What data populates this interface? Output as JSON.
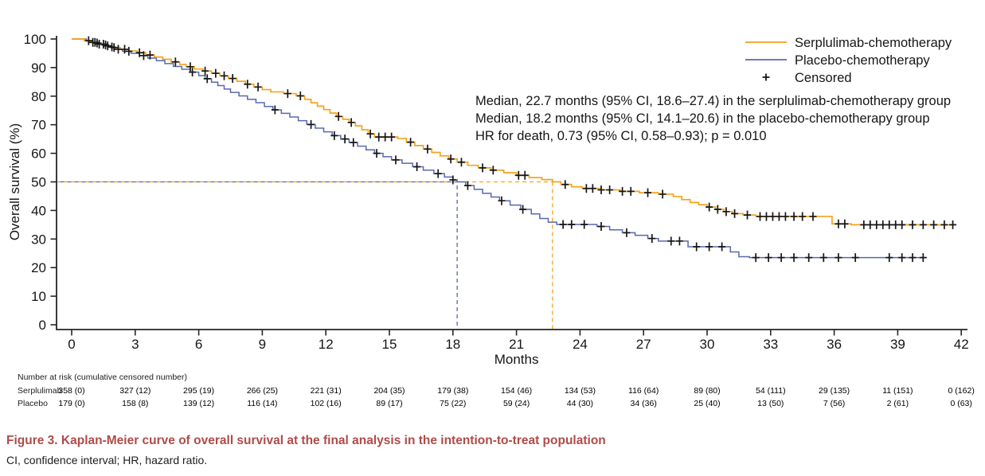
{
  "figure": {
    "caption_label": "Figure 3.",
    "caption_text": " Kaplan-Meier curve of overall survival at the final analysis in the intention-to-treat population",
    "footnote": "CI, confidence interval; HR, hazard ratio.",
    "caption_color": "#AE4C49"
  },
  "colors": {
    "serplulimab": "#F5A31E",
    "placebo": "#5A68AE",
    "censor": "#161616",
    "axis": "#262626"
  },
  "chart_data": {
    "type": "line",
    "subtype": "kaplan_meier_step",
    "title": "",
    "xlabel": "Months",
    "ylabel": "Overall survival (%)",
    "xlim": [
      0,
      42
    ],
    "ylim": [
      0,
      100
    ],
    "x_ticks": [
      0,
      3,
      6,
      9,
      12,
      15,
      18,
      21,
      24,
      27,
      30,
      33,
      36,
      39,
      42
    ],
    "y_ticks": [
      0,
      10,
      20,
      30,
      40,
      50,
      60,
      70,
      80,
      90,
      100
    ],
    "grid": false,
    "legend_position": "top-right",
    "legend": [
      {
        "label": "Serplulimab-chemotherapy",
        "type": "line",
        "color": "#F5A31E"
      },
      {
        "label": "Placebo-chemotherapy",
        "type": "line",
        "color": "#5A68AE"
      },
      {
        "label": "Censored",
        "type": "plus",
        "color": "#161616"
      }
    ],
    "annotation_lines": [
      "Median, 22.7 months (95% CI, 18.6–27.4) in the serplulimab-chemotherapy group",
      "Median, 18.2 months (95% CI, 14.1–20.6) in the placebo-chemotherapy group",
      "HR for death, 0.73 (95% CI, 0.58–0.93); p = 0.010"
    ],
    "median_reference": {
      "survival_pct": 50,
      "serplulimab_months": 22.7,
      "placebo_months": 18.2
    },
    "series": [
      {
        "name": "Serplulimab-chemotherapy",
        "color": "#F5A31E",
        "end_month": 41.6,
        "steps": [
          [
            0,
            100
          ],
          [
            0.6,
            99.4
          ],
          [
            0.9,
            98.8
          ],
          [
            1.2,
            98.2
          ],
          [
            1.6,
            97.6
          ],
          [
            1.9,
            97.0
          ],
          [
            2.3,
            96.4
          ],
          [
            2.7,
            95.8
          ],
          [
            3.1,
            95.2
          ],
          [
            3.5,
            94.4
          ],
          [
            3.9,
            93.7
          ],
          [
            4.3,
            92.9
          ],
          [
            4.7,
            92.0
          ],
          [
            5.1,
            91.1
          ],
          [
            5.4,
            90.3
          ],
          [
            5.8,
            89.5
          ],
          [
            6.2,
            88.8
          ],
          [
            6.6,
            88.0
          ],
          [
            7.0,
            87.1
          ],
          [
            7.4,
            86.2
          ],
          [
            7.8,
            85.2
          ],
          [
            8.2,
            84.2
          ],
          [
            8.6,
            83.2
          ],
          [
            9.0,
            82.3
          ],
          [
            9.4,
            81.5
          ],
          [
            10.0,
            80.9
          ],
          [
            10.6,
            80.1
          ],
          [
            11.0,
            78.9
          ],
          [
            11.3,
            77.7
          ],
          [
            11.6,
            76.5
          ],
          [
            11.9,
            75.3
          ],
          [
            12.2,
            74.1
          ],
          [
            12.5,
            72.9
          ],
          [
            12.8,
            71.9
          ],
          [
            13.1,
            70.8
          ],
          [
            13.4,
            69.6
          ],
          [
            13.7,
            68.2
          ],
          [
            14.0,
            66.8
          ],
          [
            14.3,
            65.7
          ],
          [
            15.4,
            65.2
          ],
          [
            15.8,
            63.9
          ],
          [
            16.2,
            62.7
          ],
          [
            16.6,
            61.5
          ],
          [
            17.0,
            60.3
          ],
          [
            17.4,
            59.1
          ],
          [
            17.8,
            58.0
          ],
          [
            18.2,
            56.9
          ],
          [
            18.7,
            55.8
          ],
          [
            19.2,
            54.9
          ],
          [
            19.8,
            54.1
          ],
          [
            20.4,
            53.2
          ],
          [
            21.0,
            52.3
          ],
          [
            21.6,
            51.5
          ],
          [
            22.2,
            50.8
          ],
          [
            22.7,
            50.0
          ],
          [
            23.1,
            49.1
          ],
          [
            23.6,
            48.3
          ],
          [
            24.1,
            47.7
          ],
          [
            25.0,
            47.2
          ],
          [
            25.9,
            46.7
          ],
          [
            26.8,
            46.2
          ],
          [
            27.7,
            45.7
          ],
          [
            28.4,
            44.9
          ],
          [
            28.8,
            43.8
          ],
          [
            29.2,
            42.8
          ],
          [
            29.6,
            42.0
          ],
          [
            30.0,
            41.2
          ],
          [
            30.4,
            40.4
          ],
          [
            30.8,
            39.6
          ],
          [
            31.2,
            38.9
          ],
          [
            31.7,
            38.4
          ],
          [
            32.3,
            37.9
          ],
          [
            35.9,
            35.3
          ],
          [
            36.8,
            35.0
          ]
        ],
        "censor_months": [
          0.8,
          1.0,
          1.1,
          1.3,
          1.5,
          1.7,
          2.0,
          2.5,
          3.2,
          3.7,
          4.9,
          5.6,
          6.3,
          6.8,
          7.2,
          7.6,
          8.3,
          8.8,
          10.2,
          10.8,
          12.6,
          13.2,
          14.1,
          14.5,
          14.8,
          15.1,
          16.0,
          16.8,
          17.9,
          18.4,
          19.4,
          19.9,
          21.1,
          21.4,
          23.3,
          24.3,
          24.6,
          25.0,
          25.4,
          26.0,
          26.4,
          27.2,
          27.9,
          30.1,
          30.5,
          30.9,
          31.3,
          31.9,
          32.5,
          32.8,
          33.1,
          33.4,
          33.7,
          34.1,
          34.5,
          35.0,
          36.2,
          36.5,
          37.4,
          37.7,
          38.0,
          38.3,
          38.6,
          38.9,
          39.2,
          39.7,
          40.2,
          40.7,
          41.2,
          41.6
        ]
      },
      {
        "name": "Placebo-chemotherapy",
        "color": "#5A68AE",
        "end_month": 40.2,
        "steps": [
          [
            0,
            100
          ],
          [
            0.7,
            99.3
          ],
          [
            1.0,
            98.6
          ],
          [
            1.4,
            97.9
          ],
          [
            1.7,
            97.2
          ],
          [
            2.0,
            96.4
          ],
          [
            2.4,
            95.7
          ],
          [
            2.8,
            95.0
          ],
          [
            3.2,
            94.2
          ],
          [
            3.6,
            93.3
          ],
          [
            4.0,
            92.4
          ],
          [
            4.4,
            91.4
          ],
          [
            4.8,
            90.4
          ],
          [
            5.2,
            89.4
          ],
          [
            5.6,
            88.4
          ],
          [
            6.0,
            87.2
          ],
          [
            6.3,
            86.1
          ],
          [
            6.6,
            84.9
          ],
          [
            6.9,
            83.7
          ],
          [
            7.2,
            82.5
          ],
          [
            7.5,
            81.3
          ],
          [
            7.9,
            80.1
          ],
          [
            8.3,
            78.9
          ],
          [
            8.7,
            77.7
          ],
          [
            9.1,
            76.4
          ],
          [
            9.5,
            75.2
          ],
          [
            9.9,
            74.0
          ],
          [
            10.3,
            72.7
          ],
          [
            10.7,
            71.4
          ],
          [
            11.1,
            70.1
          ],
          [
            11.5,
            68.8
          ],
          [
            11.9,
            67.5
          ],
          [
            12.3,
            66.2
          ],
          [
            12.7,
            65.0
          ],
          [
            13.1,
            63.8
          ],
          [
            13.5,
            62.5
          ],
          [
            13.9,
            61.2
          ],
          [
            14.3,
            60.0
          ],
          [
            14.7,
            58.8
          ],
          [
            15.1,
            57.7
          ],
          [
            15.6,
            56.5
          ],
          [
            16.1,
            55.3
          ],
          [
            16.6,
            54.1
          ],
          [
            17.1,
            52.9
          ],
          [
            17.6,
            51.7
          ],
          [
            18.0,
            50.7
          ],
          [
            18.2,
            50.0
          ],
          [
            18.6,
            48.7
          ],
          [
            19.0,
            47.4
          ],
          [
            19.4,
            46.0
          ],
          [
            19.8,
            44.7
          ],
          [
            20.2,
            43.4
          ],
          [
            20.7,
            41.9
          ],
          [
            21.2,
            40.4
          ],
          [
            21.7,
            38.8
          ],
          [
            22.1,
            37.2
          ],
          [
            22.5,
            35.9
          ],
          [
            22.9,
            35.1
          ],
          [
            24.8,
            34.4
          ],
          [
            25.4,
            33.2
          ],
          [
            26.0,
            32.2
          ],
          [
            26.6,
            31.3
          ],
          [
            27.2,
            30.2
          ],
          [
            27.7,
            29.3
          ],
          [
            29.1,
            27.3
          ],
          [
            31.1,
            25.5
          ],
          [
            31.5,
            23.8
          ],
          [
            32.0,
            23.5
          ]
        ],
        "censor_months": [
          1.2,
          1.6,
          1.9,
          2.2,
          2.7,
          3.4,
          5.7,
          6.4,
          9.6,
          11.3,
          12.4,
          12.9,
          13.3,
          14.4,
          15.3,
          16.3,
          17.3,
          18.0,
          18.7,
          20.3,
          21.3,
          23.2,
          23.6,
          24.2,
          25.0,
          26.2,
          27.4,
          28.3,
          28.7,
          29.5,
          30.1,
          30.7,
          32.3,
          32.9,
          33.5,
          34.1,
          34.8,
          35.5,
          36.2,
          37.0,
          38.6,
          39.2,
          39.7,
          40.2
        ]
      }
    ],
    "risk_table": {
      "header": "Number at risk (cumulative censored number)",
      "months": [
        0,
        3,
        6,
        9,
        12,
        15,
        18,
        21,
        24,
        27,
        30,
        33,
        36,
        39,
        42
      ],
      "rows": [
        {
          "label": "Serplulimab",
          "values": [
            "358 (0)",
            "327 (12)",
            "295 (19)",
            "266 (25)",
            "221 (31)",
            "204 (35)",
            "179 (38)",
            "154 (46)",
            "134 (53)",
            "116 (64)",
            "89 (80)",
            "54 (111)",
            "29 (135)",
            "11 (151)",
            "0 (162)"
          ]
        },
        {
          "label": "Placebo",
          "values": [
            "179 (0)",
            "158 (8)",
            "139 (12)",
            "116 (14)",
            "102 (16)",
            "89 (17)",
            "75 (22)",
            "59 (24)",
            "44 (30)",
            "34 (36)",
            "25 (40)",
            "13 (50)",
            "7 (56)",
            "2 (61)",
            "0 (63)"
          ]
        }
      ]
    }
  }
}
